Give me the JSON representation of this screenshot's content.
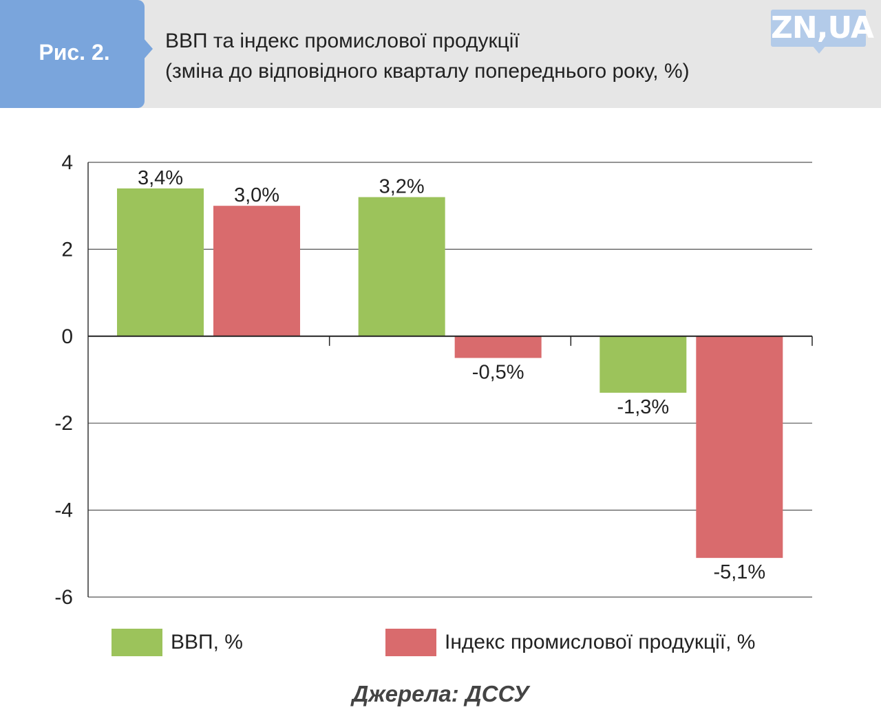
{
  "header": {
    "figure_label": "Рис. 2.",
    "title_line1": "ВВП та індекс промислової продукції",
    "title_line2": "(зміна до відповідного кварталу попереднього року, %)",
    "logo_text": "ZN,UA"
  },
  "colors": {
    "gdp": "#9cc35b",
    "industry": "#d96b6d",
    "tab": "#7aa5dc",
    "header_bg": "#e6e6e6",
    "grid": "#555555"
  },
  "chart_data": {
    "type": "bar",
    "title": "ВВП та індекс промислової продукції (зміна до відповідного кварталу попереднього року, %)",
    "categories": [
      "",
      "",
      ""
    ],
    "series": [
      {
        "name": "ВВП, %",
        "key": "gdp",
        "values": [
          3.4,
          3.2,
          -1.3
        ],
        "labels": [
          "3,4%",
          "3,2%",
          "-1,3%"
        ]
      },
      {
        "name": "Індекс промислової продукції, %",
        "key": "industry",
        "values": [
          3.0,
          -0.5,
          -5.1
        ],
        "labels": [
          "3,0%",
          "-0,5%",
          "-5,1%"
        ]
      }
    ],
    "ylim": [
      -6,
      4
    ],
    "yticks": [
      4,
      2,
      0,
      -2,
      -4,
      -6
    ],
    "ytick_labels": [
      "4",
      "2",
      "0",
      "-2",
      "-4",
      "-6"
    ],
    "grid": true,
    "legend_position": "bottom"
  },
  "legend": {
    "gdp_label": "ВВП, %",
    "industry_label": "Індекс промислової продукції, %"
  },
  "source": "Джерела: ДССУ"
}
